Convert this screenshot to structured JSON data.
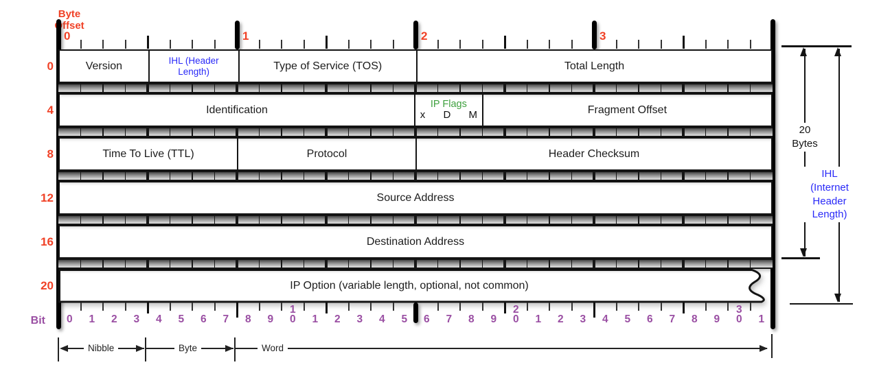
{
  "labels": {
    "byte_offset": [
      "Byte",
      "Offset"
    ],
    "bit": "Bit",
    "units": [
      "Nibble",
      "Byte",
      "Word"
    ]
  },
  "colors": {
    "red": "#f04126",
    "purple": "#9a4fa3",
    "blue": "#2929f8",
    "green": "#3ea03e"
  },
  "top_byte_numbers": [
    "0",
    "1",
    "2",
    "3"
  ],
  "byte_offsets": [
    "0",
    "4",
    "8",
    "12",
    "16",
    "20"
  ],
  "rows": [
    {
      "offset": "0",
      "cells": [
        {
          "label": "Version",
          "bits": 4
        },
        {
          "label": "IHL (Header Length)",
          "lines": [
            "IHL (Header",
            "Length)"
          ],
          "bits": 4,
          "color": "blue"
        },
        {
          "label": "Type of Service (TOS)",
          "bits": 8
        },
        {
          "label": "Total Length",
          "bits": 16
        }
      ]
    },
    {
      "offset": "4",
      "cells": [
        {
          "label": "Identification",
          "bits": 16
        },
        {
          "label": "IP Flags",
          "flags": [
            "x",
            "D",
            "M"
          ],
          "bits": 3,
          "color": "green"
        },
        {
          "label": "Fragment Offset",
          "bits": 13
        }
      ]
    },
    {
      "offset": "8",
      "cells": [
        {
          "label": "Time To Live (TTL)",
          "bits": 8
        },
        {
          "label": "Protocol",
          "bits": 8
        },
        {
          "label": "Header Checksum",
          "bits": 16
        }
      ]
    },
    {
      "offset": "12",
      "cells": [
        {
          "label": "Source Address",
          "bits": 32
        }
      ]
    },
    {
      "offset": "16",
      "cells": [
        {
          "label": "Destination Address",
          "bits": 32
        }
      ]
    },
    {
      "offset": "20",
      "cells": [
        {
          "label": "IP Option (variable length, optional, not common)",
          "bits": 32
        }
      ],
      "torn": true
    }
  ],
  "bit_numbers": [
    "0",
    "1",
    "2",
    "3",
    "4",
    "5",
    "6",
    "7",
    "8",
    "9",
    "10",
    "1",
    "2",
    "3",
    "4",
    "5",
    "6",
    "7",
    "8",
    "9",
    "20",
    "1",
    "2",
    "3",
    "4",
    "5",
    "6",
    "7",
    "8",
    "9",
    "30",
    "1"
  ],
  "right": {
    "bytes_lines": [
      "20",
      "Bytes"
    ],
    "ihl_lines": [
      "IHL",
      "(Internet",
      "Header",
      "Length)"
    ]
  }
}
